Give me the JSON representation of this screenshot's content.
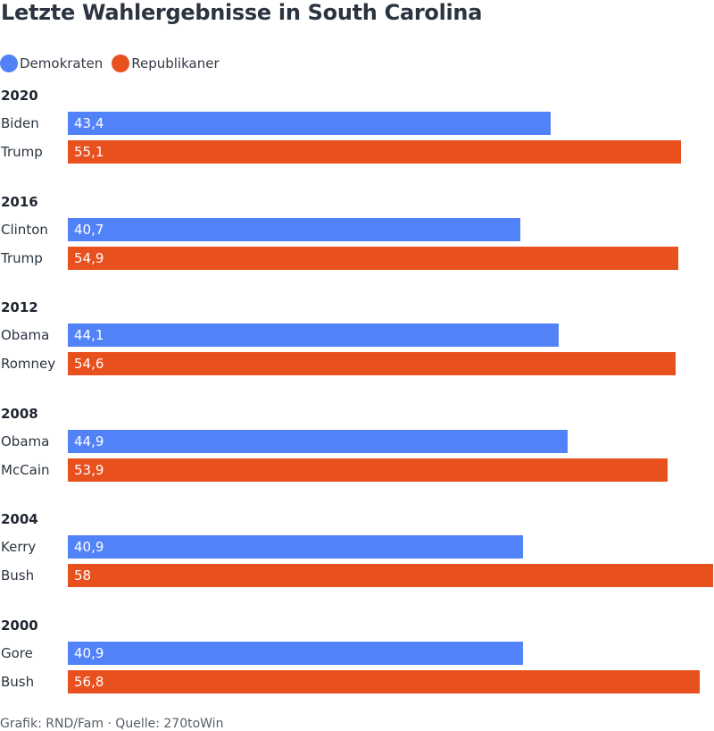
{
  "title": "Letzte Wahlergebnisse in South Carolina",
  "legend": [
    {
      "label": "Demokraten",
      "color": "#5282f8"
    },
    {
      "label": "Republikaner",
      "color": "#e8501e"
    }
  ],
  "footer": "Grafik: RND/Fam · Quelle: 270toWin",
  "chart_data": {
    "type": "bar",
    "orientation": "horizontal",
    "title": "Letzte Wahlergebnisse in South Carolina",
    "xlim": [
      0,
      58
    ],
    "series": [
      {
        "name": "Demokraten",
        "color": "#5282f8"
      },
      {
        "name": "Republikaner",
        "color": "#e8501e"
      }
    ],
    "groups": [
      {
        "year": "2020",
        "candidates": [
          {
            "name": "Biden",
            "party": "Demokraten",
            "value": 43.4,
            "label": "43,4"
          },
          {
            "name": "Trump",
            "party": "Republikaner",
            "value": 55.1,
            "label": "55,1"
          }
        ]
      },
      {
        "year": "2016",
        "candidates": [
          {
            "name": "Clinton",
            "party": "Demokraten",
            "value": 40.7,
            "label": "40,7"
          },
          {
            "name": "Trump",
            "party": "Republikaner",
            "value": 54.9,
            "label": "54,9"
          }
        ]
      },
      {
        "year": "2012",
        "candidates": [
          {
            "name": "Obama",
            "party": "Demokraten",
            "value": 44.1,
            "label": "44,1"
          },
          {
            "name": "Romney",
            "party": "Republikaner",
            "value": 54.6,
            "label": "54,6"
          }
        ]
      },
      {
        "year": "2008",
        "candidates": [
          {
            "name": "Obama",
            "party": "Demokraten",
            "value": 44.9,
            "label": "44,9"
          },
          {
            "name": "McCain",
            "party": "Republikaner",
            "value": 53.9,
            "label": "53,9"
          }
        ]
      },
      {
        "year": "2004",
        "candidates": [
          {
            "name": "Kerry",
            "party": "Demokraten",
            "value": 40.9,
            "label": "40,9"
          },
          {
            "name": "Bush",
            "party": "Republikaner",
            "value": 58,
            "label": "58"
          }
        ]
      },
      {
        "year": "2000",
        "candidates": [
          {
            "name": "Gore",
            "party": "Demokraten",
            "value": 40.9,
            "label": "40,9"
          },
          {
            "name": "Bush",
            "party": "Republikaner",
            "value": 56.8,
            "label": "56,8"
          }
        ]
      }
    ]
  }
}
